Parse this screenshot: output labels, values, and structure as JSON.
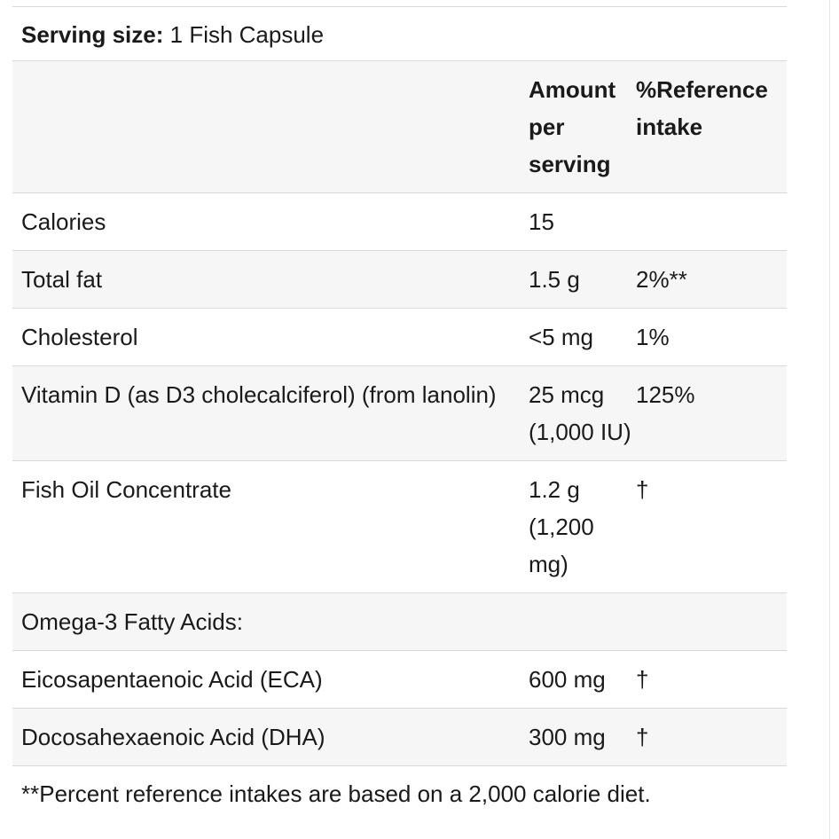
{
  "serving": {
    "label": "Serving size:",
    "value": " 1 Fish Capsule"
  },
  "header": {
    "amount": "Amount per serving",
    "reference": "%Reference intake"
  },
  "rows": [
    {
      "name": "Calories",
      "amount": "15",
      "reference": ""
    },
    {
      "name": "Total fat",
      "amount": "1.5 g",
      "reference": "2%**"
    },
    {
      "name": "Cholesterol",
      "amount": "<5 mg",
      "reference": "1%"
    },
    {
      "name": "Vitamin D (as D3 cholecalciferol) (from lanolin)",
      "amount": "25 mcg (1,000 IU)",
      "reference": "125%"
    },
    {
      "name": "Fish Oil Concentrate",
      "amount": "1.2 g (1,200 mg)",
      "reference": "†"
    },
    {
      "name": "Omega-3 Fatty Acids:",
      "amount": "",
      "reference": ""
    },
    {
      "name": "Eicosapentaenoic Acid (ECA)",
      "amount": "600 mg",
      "reference": "†"
    },
    {
      "name": "Docosahexaenoic Acid (DHA)",
      "amount": "300 mg",
      "reference": "†"
    }
  ],
  "footnote": "**Percent reference intakes are based on a 2,000 calorie diet."
}
